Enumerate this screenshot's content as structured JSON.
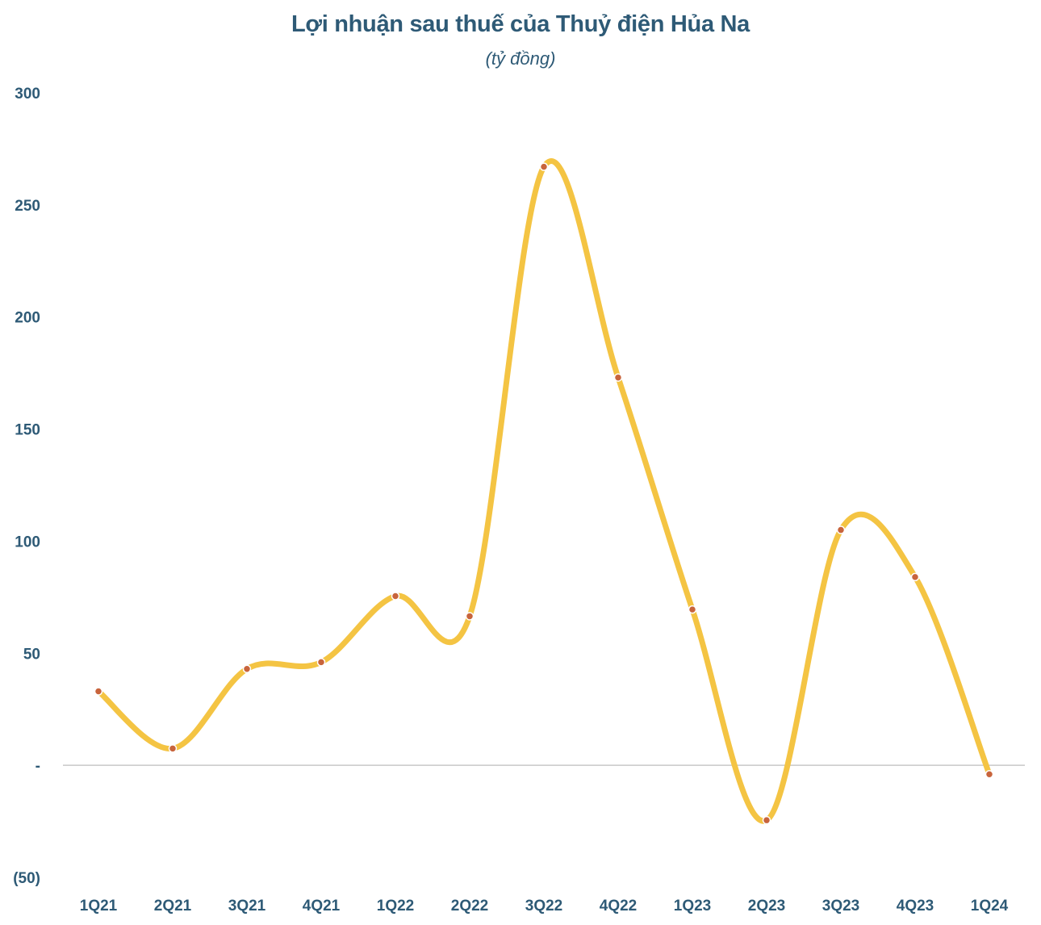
{
  "chart_data": {
    "type": "line",
    "smooth": true,
    "title": "Lợi nhuận sau thuế của Thuỷ điện Hủa Na",
    "subtitle": "(tỷ đồng)",
    "xlabel": "",
    "ylabel": "",
    "categories": [
      "1Q21",
      "2Q21",
      "3Q21",
      "4Q21",
      "1Q22",
      "2Q22",
      "3Q22",
      "4Q22",
      "1Q23",
      "2Q23",
      "3Q23",
      "4Q23",
      "1Q24"
    ],
    "series": [
      {
        "name": "Lợi nhuận sau thuế",
        "values": [
          33,
          7.5,
          43,
          46,
          75.5,
          66.5,
          267,
          173,
          69.5,
          -24.5,
          105,
          84,
          -4
        ]
      }
    ],
    "ylim": [
      -50,
      300
    ],
    "yticks": [
      300,
      250,
      200,
      150,
      100,
      50,
      0,
      -50
    ],
    "ytick_labels": [
      "300",
      "250",
      "200",
      "150",
      "100",
      "50",
      "-",
      "(50)"
    ],
    "line_color": "#f4c443",
    "marker_color": "#c8643c",
    "text_color": "#2e5a76",
    "zero_line_color": "#c8c8c8",
    "grid": false
  }
}
